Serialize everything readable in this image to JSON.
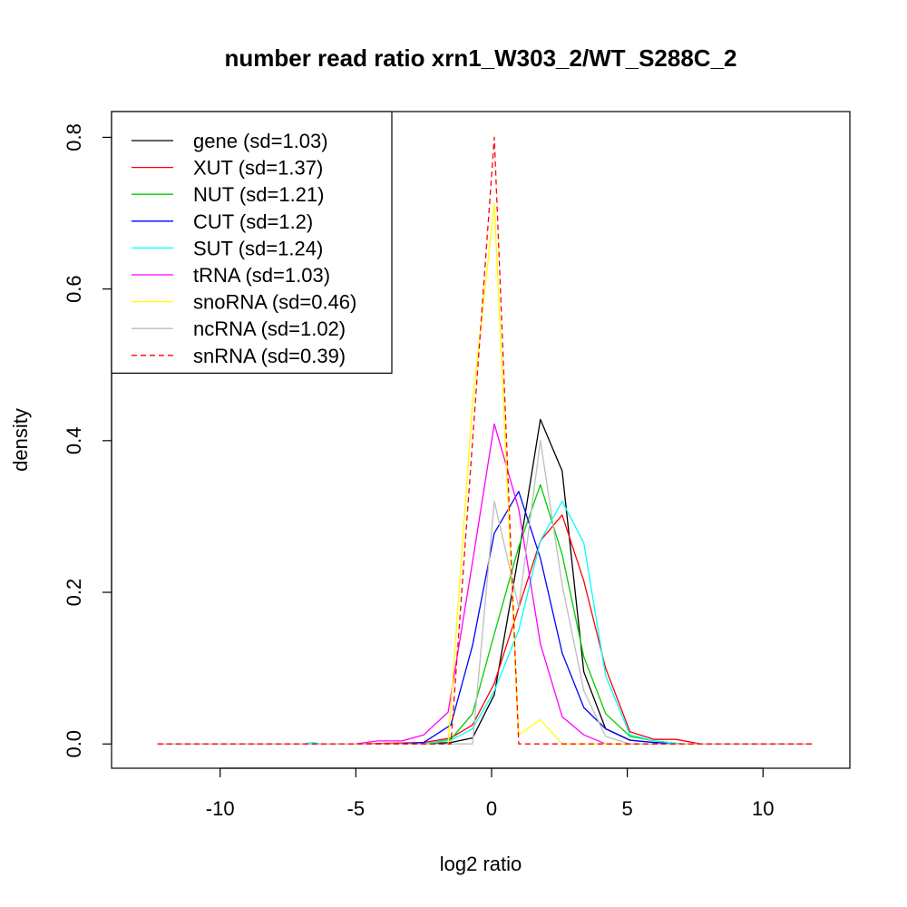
{
  "chart_data": {
    "type": "line",
    "title": "number read ratio xrn1_W303_2/WT_S288C_2",
    "xlabel": "log2 ratio",
    "ylabel": "density",
    "xlim": [
      -14,
      13.2
    ],
    "ylim": [
      -0.032,
      0.834
    ],
    "xticks": [
      -10,
      -5,
      0,
      5,
      10
    ],
    "xtick_labels": [
      "-10",
      "-5",
      "0",
      "5",
      "10"
    ],
    "yticks": [
      0.0,
      0.2,
      0.4,
      0.6,
      0.8
    ],
    "ytick_labels": [
      "0.0",
      "0.2",
      "0.4",
      "0.6",
      "0.8"
    ],
    "grid": false,
    "legend_position": "top-left",
    "series": [
      {
        "name": "gene (sd=1.03)",
        "color": "#000000",
        "dash": false,
        "points": [
          [
            -12.3,
            0
          ],
          [
            -2.5,
            0
          ],
          [
            -1.5,
            0.002
          ],
          [
            -0.7,
            0.008
          ],
          [
            0.1,
            0.065
          ],
          [
            1,
            0.25
          ],
          [
            1.8,
            0.428
          ],
          [
            2.6,
            0.36
          ],
          [
            3.4,
            0.095
          ],
          [
            4.2,
            0.02
          ],
          [
            5.1,
            0.005
          ],
          [
            6,
            0.002
          ],
          [
            7,
            0
          ],
          [
            11.8,
            0
          ]
        ]
      },
      {
        "name": "XUT (sd=1.37)",
        "color": "#ff0000",
        "dash": false,
        "points": [
          [
            -12.3,
            0
          ],
          [
            -5,
            0
          ],
          [
            -2.5,
            0.002
          ],
          [
            -1.5,
            0.008
          ],
          [
            -0.7,
            0.025
          ],
          [
            0.1,
            0.08
          ],
          [
            1,
            0.18
          ],
          [
            1.8,
            0.268
          ],
          [
            2.6,
            0.302
          ],
          [
            3.4,
            0.215
          ],
          [
            4.2,
            0.1
          ],
          [
            5.1,
            0.016
          ],
          [
            6,
            0.006
          ],
          [
            6.8,
            0.006
          ],
          [
            7.7,
            0
          ],
          [
            11.8,
            0
          ]
        ]
      },
      {
        "name": "NUT (sd=1.21)",
        "color": "#00cd00",
        "dash": false,
        "points": [
          [
            -12.3,
            0
          ],
          [
            -2.5,
            0
          ],
          [
            -1.5,
            0.006
          ],
          [
            -0.7,
            0.04
          ],
          [
            0.1,
            0.145
          ],
          [
            1,
            0.26
          ],
          [
            1.8,
            0.342
          ],
          [
            2.6,
            0.25
          ],
          [
            3.4,
            0.115
          ],
          [
            4.2,
            0.04
          ],
          [
            5.1,
            0.01
          ],
          [
            6,
            0.004
          ],
          [
            7,
            0
          ],
          [
            11.8,
            0
          ]
        ]
      },
      {
        "name": "CUT (sd=1.2)",
        "color": "#0000ff",
        "dash": false,
        "points": [
          [
            -12.3,
            0
          ],
          [
            -3.5,
            0
          ],
          [
            -2.5,
            0.002
          ],
          [
            -1.5,
            0.025
          ],
          [
            -0.7,
            0.13
          ],
          [
            0.1,
            0.278
          ],
          [
            1,
            0.333
          ],
          [
            1.8,
            0.245
          ],
          [
            2.6,
            0.12
          ],
          [
            3.4,
            0.048
          ],
          [
            4.2,
            0.02
          ],
          [
            5.1,
            0.005
          ],
          [
            6,
            0.002
          ],
          [
            7,
            0
          ],
          [
            11.8,
            0
          ]
        ]
      },
      {
        "name": "SUT (sd=1.24)",
        "color": "#00ffff",
        "dash": false,
        "points": [
          [
            -12.3,
            0
          ],
          [
            -6.9,
            0
          ],
          [
            -6.6,
            0.002
          ],
          [
            -6.3,
            0
          ],
          [
            -2.5,
            0
          ],
          [
            -1.5,
            0.005
          ],
          [
            -0.7,
            0.02
          ],
          [
            0.1,
            0.07
          ],
          [
            1,
            0.15
          ],
          [
            1.8,
            0.268
          ],
          [
            2.6,
            0.32
          ],
          [
            3.4,
            0.265
          ],
          [
            4.2,
            0.09
          ],
          [
            5.1,
            0.012
          ],
          [
            6,
            0.004
          ],
          [
            7,
            0
          ],
          [
            11.8,
            0
          ]
        ]
      },
      {
        "name": "tRNA (sd=1.03)",
        "color": "#ff00ff",
        "dash": false,
        "points": [
          [
            -12.3,
            0
          ],
          [
            -5,
            0
          ],
          [
            -4.2,
            0.004
          ],
          [
            -3.3,
            0.004
          ],
          [
            -2.5,
            0.012
          ],
          [
            -1.6,
            0.042
          ],
          [
            -0.7,
            0.24
          ],
          [
            0.1,
            0.422
          ],
          [
            1,
            0.31
          ],
          [
            1.8,
            0.132
          ],
          [
            2.6,
            0.036
          ],
          [
            3.4,
            0.012
          ],
          [
            4.2,
            0
          ],
          [
            11.8,
            0
          ]
        ]
      },
      {
        "name": "snoRNA (sd=0.46)",
        "color": "#ffff00",
        "dash": false,
        "points": [
          [
            -12.3,
            0
          ],
          [
            -1.6,
            0
          ],
          [
            -0.7,
            0.45
          ],
          [
            0.1,
            0.713
          ],
          [
            1,
            0.012
          ],
          [
            1.8,
            0.032
          ],
          [
            2.6,
            0
          ],
          [
            11.8,
            0
          ]
        ]
      },
      {
        "name": "ncRNA (sd=1.02)",
        "color": "#bebebe",
        "dash": false,
        "points": [
          [
            -12.3,
            0
          ],
          [
            -0.7,
            0
          ],
          [
            0.1,
            0.32
          ],
          [
            1,
            0.18
          ],
          [
            1.8,
            0.4
          ],
          [
            2.6,
            0.21
          ],
          [
            3.4,
            0.07
          ],
          [
            4.2,
            0.01
          ],
          [
            5.1,
            0
          ],
          [
            11.8,
            0
          ]
        ]
      },
      {
        "name": "snRNA (sd=0.39)",
        "color": "#ff0000",
        "dash": true,
        "points": [
          [
            -12.3,
            0
          ],
          [
            -1.5,
            0
          ],
          [
            0.1,
            0.8
          ],
          [
            1,
            0
          ],
          [
            11.8,
            0
          ]
        ]
      }
    ]
  }
}
